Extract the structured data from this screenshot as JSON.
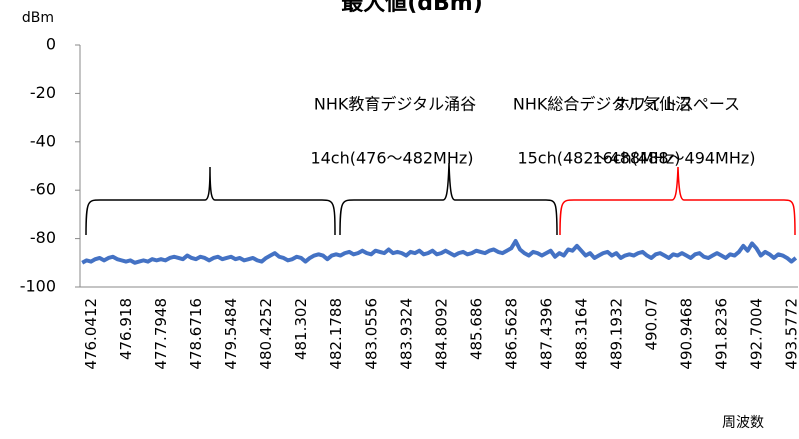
{
  "chart_data": {
    "type": "line",
    "title": "最大値(dBm)",
    "y_label": "dBm",
    "x_label": "周波数",
    "ylim": [
      -100,
      0
    ],
    "yticks": [
      0,
      -20,
      -40,
      -60,
      -80,
      -100
    ],
    "grid": false,
    "categories": [
      null,
      "476.0412",
      null,
      null,
      null,
      null,
      null,
      null,
      null,
      "476.918",
      null,
      null,
      null,
      null,
      null,
      null,
      null,
      "477.7948",
      null,
      null,
      null,
      null,
      null,
      null,
      null,
      "478.6716",
      null,
      null,
      null,
      null,
      null,
      null,
      null,
      "479.5484",
      null,
      null,
      null,
      null,
      null,
      null,
      null,
      "480.4252",
      null,
      null,
      null,
      null,
      null,
      null,
      null,
      "481.302",
      null,
      null,
      null,
      null,
      null,
      null,
      null,
      "482.1788",
      null,
      null,
      null,
      null,
      null,
      null,
      null,
      "483.0556",
      null,
      null,
      null,
      null,
      null,
      null,
      null,
      "483.9324",
      null,
      null,
      null,
      null,
      null,
      null,
      null,
      "484.8092",
      null,
      null,
      null,
      null,
      null,
      null,
      null,
      "485.686",
      null,
      null,
      null,
      null,
      null,
      null,
      null,
      "486.5628",
      null,
      null,
      null,
      null,
      null,
      null,
      null,
      "487.4396",
      null,
      null,
      null,
      null,
      null,
      null,
      null,
      "488.3164",
      null,
      null,
      null,
      null,
      null,
      null,
      null,
      "489.1932",
      null,
      null,
      null,
      null,
      null,
      null,
      null,
      "490.07",
      null,
      null,
      null,
      null,
      null,
      null,
      null,
      "490.9468",
      null,
      null,
      null,
      null,
      null,
      null,
      null,
      "491.8236",
      null,
      null,
      null,
      null,
      null,
      null,
      null,
      "492.7004",
      null,
      null,
      null,
      null,
      null,
      null,
      null,
      "493.5772",
      null,
      null
    ],
    "series": [
      {
        "name": "最大値",
        "color": "#4472c4",
        "values": [
          -90,
          -89,
          -89.5,
          -88.5,
          -88,
          -89,
          -88,
          -87.5,
          -88.5,
          -89,
          -89.5,
          -89,
          -90,
          -89.5,
          -89,
          -89.5,
          -88.5,
          -89,
          -88.5,
          -89,
          -88,
          -87.5,
          -88,
          -88.5,
          -87,
          -88,
          -88.5,
          -87.5,
          -88,
          -89,
          -88,
          -87.5,
          -88.5,
          -88,
          -87.5,
          -88.5,
          -88,
          -89,
          -88.5,
          -88,
          -89,
          -89.5,
          -88,
          -87,
          -86,
          -87.5,
          -88,
          -89,
          -88.5,
          -87.5,
          -88,
          -89.5,
          -88,
          -87,
          -86.5,
          -87,
          -88.5,
          -87,
          -86.5,
          -87,
          -86,
          -85.5,
          -86.5,
          -86,
          -85,
          -86,
          -86.5,
          -85,
          -85.5,
          -86,
          -84.5,
          -86,
          -85.5,
          -86,
          -87,
          -85.5,
          -86,
          -85,
          -86.5,
          -86,
          -85,
          -86.5,
          -86,
          -85,
          -86,
          -87,
          -86,
          -85.5,
          -86.5,
          -86,
          -85,
          -85.5,
          -86,
          -85,
          -84.5,
          -85.5,
          -86,
          -85,
          -84,
          -81,
          -84.5,
          -86,
          -87,
          -85.5,
          -86,
          -87,
          -86,
          -85,
          -87.5,
          -86,
          -87,
          -84.5,
          -85,
          -83,
          -85,
          -87,
          -86,
          -88,
          -87,
          -86,
          -85.5,
          -87,
          -86,
          -88,
          -87,
          -86.5,
          -87,
          -86,
          -85.5,
          -87,
          -88,
          -86.5,
          -86,
          -87,
          -88,
          -86.5,
          -87,
          -86,
          -87,
          -88,
          -86.5,
          -86,
          -87.5,
          -88,
          -87,
          -86,
          -87,
          -88,
          -86.5,
          -87,
          -85.5,
          -83,
          -85,
          -82,
          -84,
          -87,
          -85.5,
          -86.5,
          -88,
          -86.5,
          -87,
          -88,
          -89.5,
          -88
        ]
      }
    ],
    "annotations": [
      {
        "lines": [
          "NHK教育デジタル涌谷",
          "14ch(476～482MHz)"
        ],
        "color": "#000000"
      },
      {
        "lines": [
          "NHK総合デジタル気仙沼",
          "15ch(482～488MHz)"
        ],
        "color": "#000000"
      },
      {
        "lines": [
          "ホワイトスペース",
          "16ch(488～494MHz)"
        ],
        "color": "#ff0000"
      }
    ]
  }
}
